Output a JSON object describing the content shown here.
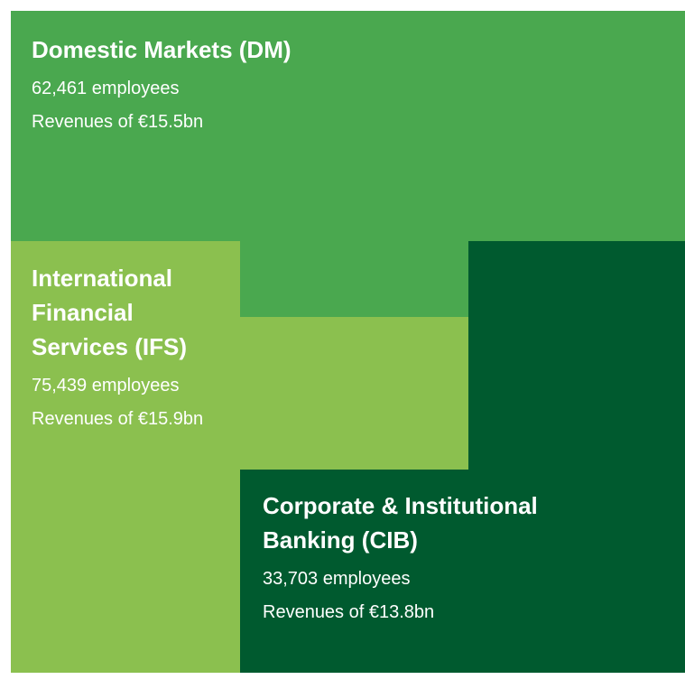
{
  "segments": [
    {
      "title": "Domestic Markets (DM)",
      "employees": "62,461 employees",
      "revenues": "Revenues of €15.5bn"
    },
    {
      "title": "International Financial Services (IFS)",
      "employees": "75,439 employees",
      "revenues": "Revenues of €15.9bn"
    },
    {
      "title": "Corporate & Institutional Banking (CIB)",
      "employees": "33,703 employees",
      "revenues": "Revenues of €13.8bn"
    }
  ]
}
